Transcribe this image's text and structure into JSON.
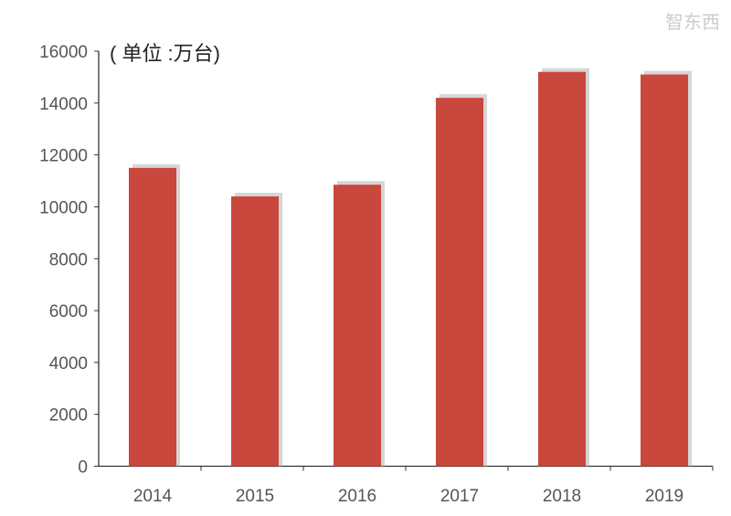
{
  "chart_data": {
    "type": "bar",
    "title": "",
    "unit_label": "( 单位 :万台)",
    "xlabel": "",
    "ylabel": "",
    "categories": [
      "2014",
      "2015",
      "2016",
      "2017",
      "2018",
      "2019"
    ],
    "values": [
      11500,
      10400,
      10850,
      14200,
      15200,
      15100
    ],
    "ylim": [
      0,
      16000
    ],
    "yticks": [
      0,
      2000,
      4000,
      6000,
      8000,
      10000,
      12000,
      14000,
      16000
    ],
    "grid": false,
    "legend": "none",
    "bar_color": "#c9473c"
  },
  "watermark": "智东西"
}
